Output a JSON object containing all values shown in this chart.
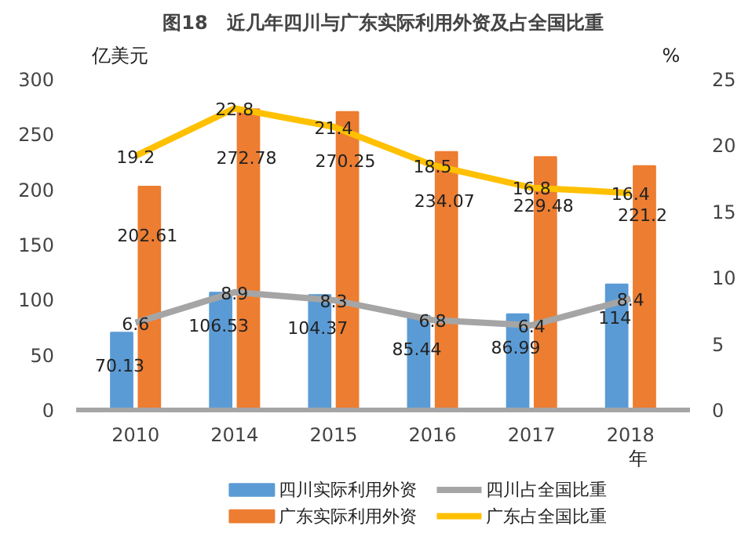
{
  "chart_data": {
    "type": "bar",
    "title": "图18　近几年四川与广东实际利用外资及占全国比重",
    "ylabel": "亿美元",
    "y2label": "%",
    "xlabel": "年",
    "categories": [
      "2010",
      "2014",
      "2015",
      "2016",
      "2017",
      "2018"
    ],
    "series": [
      {
        "name": "四川实际利用外资",
        "color": "#5b9bd5",
        "values": [
          70.13,
          106.53,
          104.37,
          85.44,
          86.99,
          114
        ]
      },
      {
        "name": "广东实际利用外资",
        "color": "#ed7d31",
        "values": [
          202.61,
          272.78,
          270.25,
          234.07,
          229.48,
          221.2
        ]
      },
      {
        "name": "四川占全国比重",
        "type": "line",
        "axis": "y2",
        "color": "#a5a5a5",
        "values": [
          6.6,
          8.9,
          8.3,
          6.8,
          6.4,
          8.4
        ]
      },
      {
        "name": "广东占全国比重",
        "type": "line",
        "axis": "y2",
        "color": "#ffc000",
        "values": [
          19.2,
          22.8,
          21.4,
          18.5,
          16.8,
          16.4
        ]
      }
    ],
    "ylim": [
      0,
      300
    ],
    "yticks": [
      0,
      50,
      100,
      150,
      200,
      250,
      300
    ],
    "y2lim": [
      0,
      25
    ],
    "y2ticks": [
      0,
      5,
      10,
      15,
      20,
      25
    ],
    "data_labels": true,
    "grid": false,
    "legend": "bottom"
  }
}
